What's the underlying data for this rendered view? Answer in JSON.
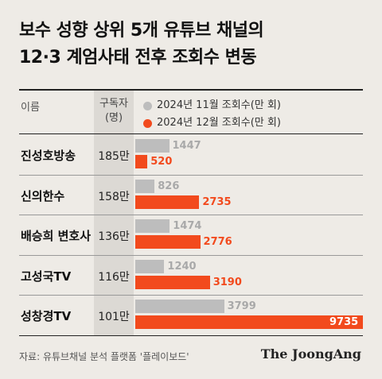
{
  "title_lines": [
    "보수 성향 상위 5개 유튜브 채널의",
    "12·3 계엄사태 전후 조회수 변동"
  ],
  "header": {
    "name": "이름",
    "subs_line1": "구독자",
    "subs_line2": "(명)"
  },
  "source": "자료: 유튜브채널 분석 플랫폼 '플레이보드'",
  "brand": "The JoongAng",
  "colors": {
    "nov": "#bdbdbd",
    "dec": "#f24a1d",
    "nov_label": "#a9a9a9",
    "dec_label": "#f24a1d"
  },
  "chart_data": {
    "type": "bar",
    "orientation": "horizontal",
    "categories": [
      "진성호방송",
      "신의한수",
      "배승희 변호사",
      "고성국TV",
      "성창경TV"
    ],
    "subscribers": [
      "185만",
      "158만",
      "136만",
      "116만",
      "101만"
    ],
    "series": [
      {
        "name": "2024년 11월 조회수(만 회)",
        "values": [
          1447,
          826,
          1474,
          1240,
          3799
        ]
      },
      {
        "name": "2024년 12월 조회수(만 회)",
        "values": [
          520,
          2735,
          2776,
          3190,
          9735
        ]
      }
    ],
    "xlim": [
      0,
      9735
    ],
    "grid": false,
    "legend": "top"
  }
}
